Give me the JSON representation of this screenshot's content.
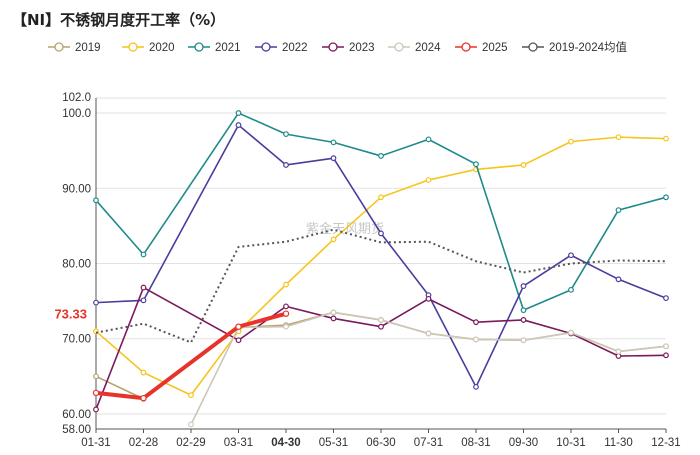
{
  "chart_data": {
    "type": "line",
    "title": "【NI】不锈钢月度开工率（%）",
    "x": [
      "01-31",
      "02-28",
      "02-29",
      "03-31",
      "04-30",
      "05-31",
      "06-30",
      "07-31",
      "08-31",
      "09-30",
      "10-31",
      "11-30",
      "12-31"
    ],
    "ylim": [
      58,
      102
    ],
    "ytick_labels": [
      "58.00",
      "60.00",
      "70.00",
      "80.00",
      "90.00",
      "100.0",
      "102.0"
    ],
    "ytick_values": [
      58,
      60,
      70,
      80,
      90,
      100,
      102
    ],
    "highlight_x_label": "04-30",
    "callout_label": "73.33",
    "callout_value": 73.33,
    "legend_position": "top",
    "series": [
      {
        "name": "2019",
        "color": "#b8a36e",
        "values": [
          65.0,
          62.0,
          null,
          71.5,
          71.8,
          73.5,
          72.5,
          70.7,
          69.9,
          69.8,
          70.8,
          68.3,
          69.0
        ]
      },
      {
        "name": "2020",
        "color": "#f7c41a",
        "values": [
          71.0,
          65.5,
          62.5,
          71.0,
          77.2,
          83.2,
          88.8,
          91.1,
          92.5,
          93.1,
          96.2,
          96.8,
          96.6
        ]
      },
      {
        "name": "2021",
        "color": "#1f8a8a",
        "values": [
          88.4,
          81.2,
          null,
          100.0,
          97.2,
          96.1,
          94.3,
          96.5,
          93.2,
          73.8,
          76.5,
          87.1,
          88.8
        ]
      },
      {
        "name": "2022",
        "color": "#4a3d9e",
        "values": [
          74.8,
          75.1,
          null,
          98.4,
          93.1,
          94.0,
          84.0,
          75.8,
          63.6,
          77.0,
          81.1,
          77.9,
          75.4
        ]
      },
      {
        "name": "2023",
        "color": "#7a1a5c",
        "values": [
          60.6,
          76.8,
          null,
          69.8,
          74.3,
          72.7,
          71.6,
          75.3,
          72.2,
          72.5,
          70.7,
          67.7,
          67.8
        ]
      },
      {
        "name": "2024",
        "color": "#cdc7b6",
        "values": [
          null,
          null,
          58.6,
          71.5,
          71.6,
          73.5,
          72.5,
          70.7,
          69.9,
          69.8,
          70.8,
          68.3,
          69.0
        ]
      },
      {
        "name": "2025",
        "color": "#e8332a",
        "values": [
          62.8,
          62.1,
          null,
          71.6,
          73.33,
          null,
          null,
          null,
          null,
          null,
          null,
          null,
          null
        ]
      },
      {
        "name": "2019-2024均值",
        "color": "#555555",
        "values": [
          70.8,
          72.0,
          69.5,
          82.2,
          82.9,
          84.5,
          82.8,
          82.9,
          80.3,
          78.8,
          80.0,
          80.4,
          80.3
        ]
      }
    ],
    "watermark": "紫金天风期货"
  }
}
